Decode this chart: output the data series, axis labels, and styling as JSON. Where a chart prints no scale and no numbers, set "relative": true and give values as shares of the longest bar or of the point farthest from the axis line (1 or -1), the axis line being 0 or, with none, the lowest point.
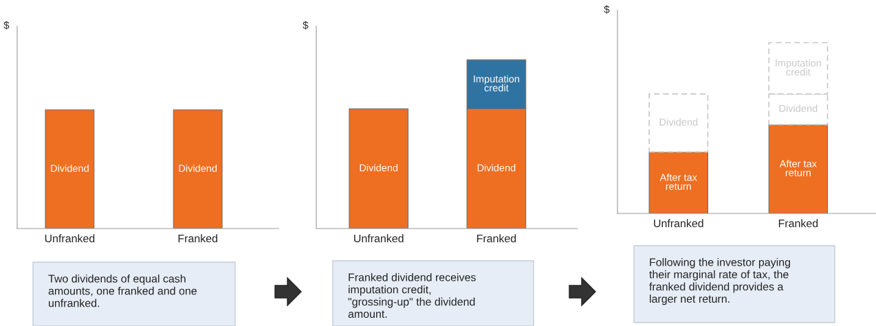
{
  "chart_data": [
    {
      "type": "bar",
      "relative": true,
      "stacked": true,
      "ylabel": "$",
      "categories": [
        "Unfranked",
        "Franked"
      ],
      "legend": false,
      "series": [
        {
          "name": "Dividend",
          "color": "#ee6e22",
          "values": [
            1,
            1
          ]
        }
      ],
      "annotations": [
        "Two dividends of equal cash amounts, one franked and one unfranked."
      ]
    },
    {
      "type": "bar",
      "relative": true,
      "stacked": true,
      "ylabel": "$",
      "categories": [
        "Unfranked",
        "Franked"
      ],
      "legend": false,
      "series": [
        {
          "name": "Dividend",
          "color": "#ee6e22",
          "values": [
            0.71,
            0.71
          ]
        },
        {
          "name": "Imputation credit",
          "color": "#2f73a3",
          "values": [
            null,
            0.29
          ]
        }
      ],
      "annotations": [
        "Franked dividend receives imputation credit, \"grossing-up\" the dividend amount."
      ]
    },
    {
      "type": "bar",
      "relative": true,
      "stacked": true,
      "ylabel": "$",
      "categories": [
        "Unfranked",
        "Franked"
      ],
      "legend": false,
      "series": [
        {
          "name": "After tax return",
          "color": "#ee6e22",
          "values": [
            0.36,
            0.52
          ]
        },
        {
          "name": "Dividend",
          "color": "#ffffff",
          "line_style": "dashed",
          "values": [
            0.34,
            0.18
          ]
        },
        {
          "name": "Imputation credit",
          "color": "#ffffff",
          "line_style": "dashed",
          "values": [
            null,
            0.3
          ]
        }
      ],
      "annotations": [
        "Following the investor paying their marginal rate of tax, the franked dividend provides a larger net return."
      ]
    }
  ]
}
